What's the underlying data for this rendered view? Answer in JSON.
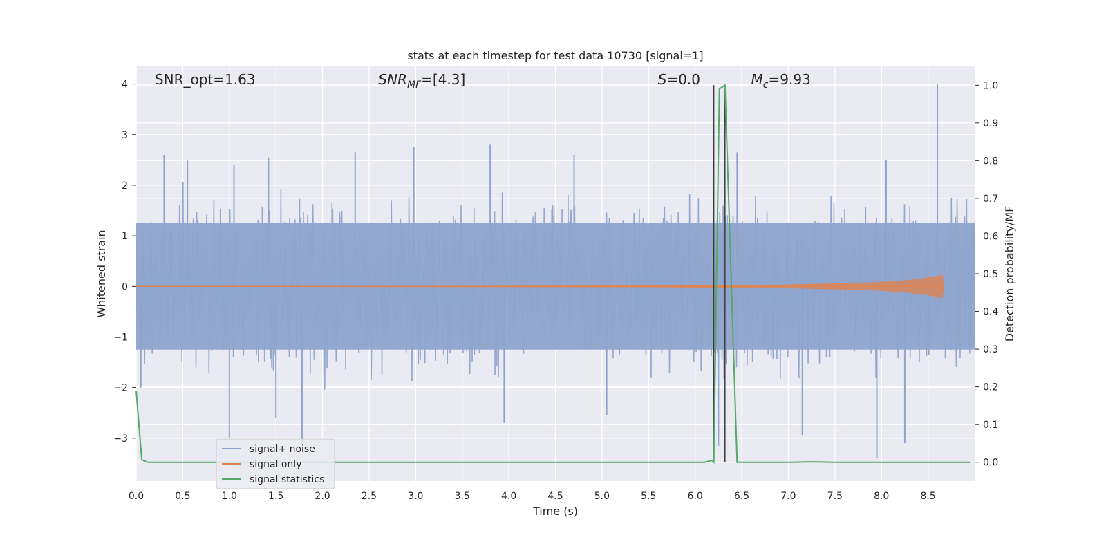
{
  "chart_data": {
    "type": "line",
    "title": "stats at each timestep for test data 10730 [signal=1]",
    "xlabel": "Time (s)",
    "ylabel_left": "Whitened strain",
    "ylabel_right": "Detection probability/MF",
    "xlim": [
      0.0,
      9.0
    ],
    "ylim_left": [
      -3.85,
      4.35
    ],
    "ylim_right": [
      -0.05,
      1.05
    ],
    "x_ticks": [
      "0.0",
      "0.5",
      "1.0",
      "1.5",
      "2.0",
      "2.5",
      "3.0",
      "3.5",
      "4.0",
      "4.5",
      "5.0",
      "5.5",
      "6.0",
      "6.5",
      "7.0",
      "7.5",
      "8.0",
      "8.5"
    ],
    "y_left_ticks": [
      {
        "value": 4,
        "label": "4"
      },
      {
        "value": 3,
        "label": "3"
      },
      {
        "value": 2,
        "label": "2"
      },
      {
        "value": 1,
        "label": "1"
      },
      {
        "value": 0,
        "label": "0"
      },
      {
        "value": -1,
        "label": "−1"
      },
      {
        "value": -2,
        "label": "−2"
      },
      {
        "value": -3,
        "label": "−3"
      }
    ],
    "y_right_ticks": [
      "0.0",
      "0.1",
      "0.2",
      "0.3",
      "0.4",
      "0.5",
      "0.6",
      "0.7",
      "0.8",
      "0.9",
      "1.0"
    ],
    "grid": true,
    "legend_position": "lower-left",
    "annotations": [
      {
        "label": "SNR_opt=1.63",
        "x_data": 0.2
      },
      {
        "label": "SNR",
        "sub": "MF",
        "suffix": "=[4.3]",
        "italic": true,
        "x_data": 2.6
      },
      {
        "label": "S",
        "suffix": "=0.0",
        "italic": true,
        "x_data": 5.6
      },
      {
        "label": "M",
        "sub": "c",
        "suffix": "=9.93",
        "italic": true,
        "x_data": 6.6
      }
    ],
    "vertical_markers_x": [
      6.2,
      6.32
    ],
    "series": [
      {
        "name": "signal+ noise",
        "color": "#8fa4cc",
        "axis": "left",
        "kind": "noise-band",
        "core_range": [
          -1.25,
          1.25
        ],
        "peak_spikes": [
          {
            "x": 0.3,
            "y": 2.6
          },
          {
            "x": 0.55,
            "y": 2.5
          },
          {
            "x": 1.05,
            "y": 2.4
          },
          {
            "x": 1.42,
            "y": 2.55
          },
          {
            "x": 2.35,
            "y": 2.65
          },
          {
            "x": 2.98,
            "y": 2.75
          },
          {
            "x": 3.8,
            "y": 2.8
          },
          {
            "x": 4.7,
            "y": 2.6
          },
          {
            "x": 6.45,
            "y": 2.65
          },
          {
            "x": 8.05,
            "y": 2.5
          },
          {
            "x": 8.6,
            "y": 4.0
          }
        ],
        "trough_spikes": [
          {
            "x": 0.05,
            "y": -2.0
          },
          {
            "x": 1.0,
            "y": -3.0
          },
          {
            "x": 1.5,
            "y": -2.6
          },
          {
            "x": 1.78,
            "y": -3.1
          },
          {
            "x": 3.95,
            "y": -2.7
          },
          {
            "x": 5.05,
            "y": -2.55
          },
          {
            "x": 6.25,
            "y": -3.15
          },
          {
            "x": 7.15,
            "y": -2.95
          },
          {
            "x": 7.95,
            "y": -3.4
          },
          {
            "x": 8.25,
            "y": -3.1
          }
        ]
      },
      {
        "name": "signal only",
        "color": "#dd8452",
        "axis": "left",
        "x": [
          0.0,
          5.5,
          6.5,
          7.0,
          7.5,
          8.0,
          8.3,
          8.55,
          8.65,
          8.67
        ],
        "amplitude": [
          0.0,
          0.01,
          0.02,
          0.03,
          0.05,
          0.08,
          0.12,
          0.18,
          0.22,
          0.0
        ]
      },
      {
        "name": "signal statistics",
        "color": "#55a868",
        "axis": "right",
        "x": [
          0.0,
          0.06,
          0.12,
          0.3,
          1.0,
          2.0,
          3.0,
          4.0,
          5.0,
          6.0,
          6.1,
          6.18,
          6.2,
          6.26,
          6.32,
          6.45,
          7.0,
          7.25,
          7.5,
          8.0,
          8.5,
          8.95
        ],
        "y": [
          0.19,
          0.007,
          0.0,
          0.0,
          0.0,
          0.0,
          0.0,
          0.0,
          0.0,
          0.0,
          0.0,
          0.005,
          0.0,
          0.99,
          1.0,
          0.0,
          0.0,
          0.001,
          0.0,
          0.0,
          0.0,
          0.0
        ]
      }
    ]
  }
}
